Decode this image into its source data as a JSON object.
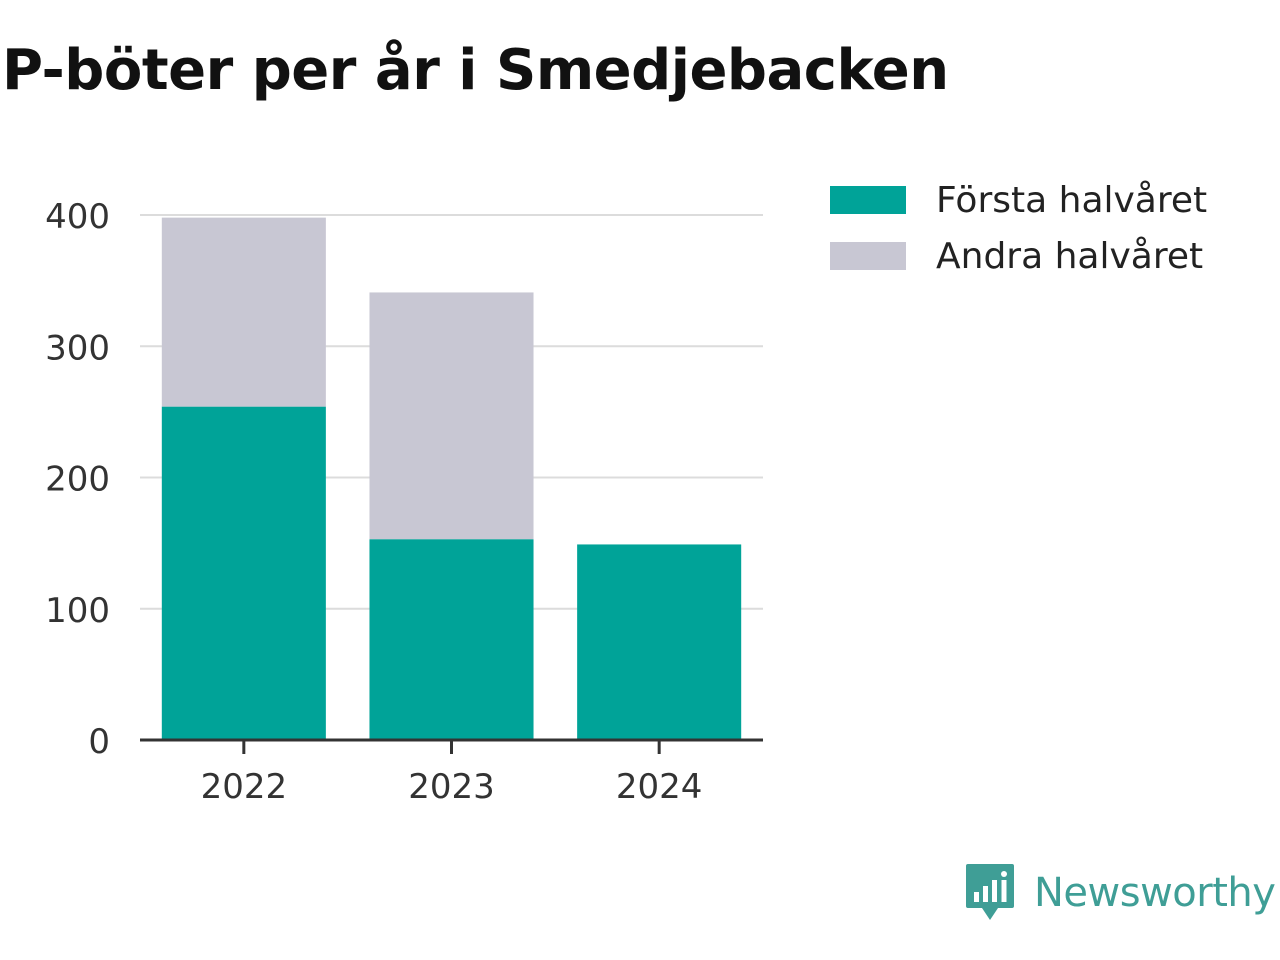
{
  "header": {
    "title": "P-böter per år i Smedjebacken"
  },
  "chart_data": {
    "type": "bar",
    "stacked": true,
    "categories": [
      "2022",
      "2023",
      "2024"
    ],
    "series": [
      {
        "name": "Första halvåret",
        "color": "#00a398",
        "values": [
          254,
          153,
          149
        ]
      },
      {
        "name": "Andra halvåret",
        "color": "#c8c7d3",
        "values": [
          144,
          188,
          null
        ]
      }
    ],
    "ylim": [
      0,
      400
    ],
    "yticks": [
      0,
      100,
      200,
      300,
      400
    ],
    "ytick_labels": [
      "0",
      "100",
      "200",
      "300",
      "400"
    ],
    "grid": true,
    "legend_position": "top-right",
    "xlabel": "",
    "ylabel": ""
  },
  "brand": {
    "name": "Newsworthy",
    "icon": "newsworthy-logo-icon",
    "color": "#3f9e96"
  }
}
